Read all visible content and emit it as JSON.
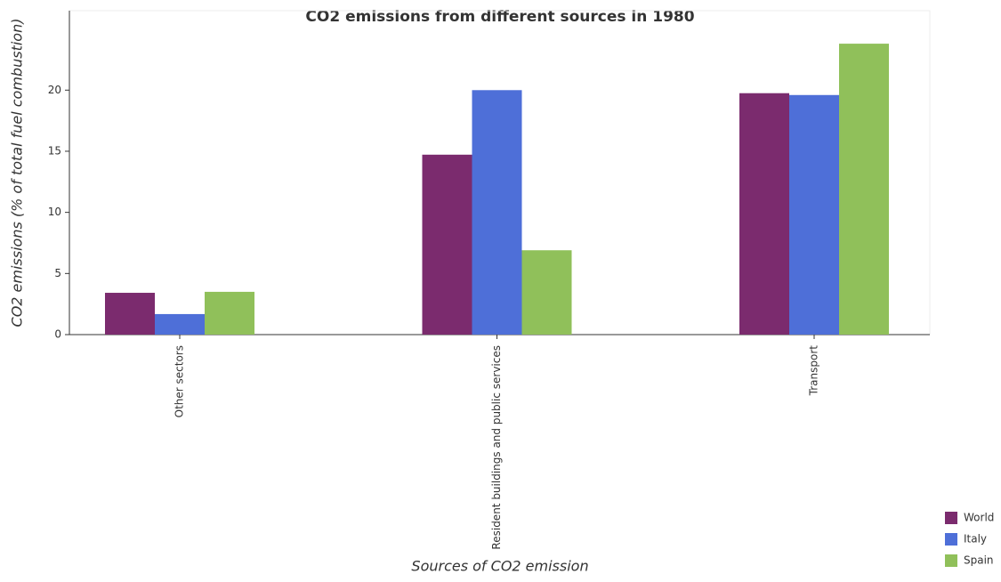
{
  "chart_data": {
    "type": "bar",
    "title": "CO2 emissions from different sources in 1980",
    "x_label": "Sources of CO2 emission",
    "y_label": "CO2 emissions (% of total fuel combustion)",
    "categories": [
      "Other sectors",
      "Resident buildings and public services",
      "Transport"
    ],
    "series": [
      {
        "name": "World",
        "color": "#7b2b6e",
        "values": [
          3.42,
          14.72,
          19.75
        ]
      },
      {
        "name": "Italy",
        "color": "#4e6fd8",
        "values": [
          1.68,
          20.0,
          19.6
        ]
      },
      {
        "name": "Spain",
        "color": "#90c05a",
        "values": [
          3.5,
          6.9,
          23.8
        ]
      }
    ],
    "ylim": [
      0,
      26.5
    ],
    "yticks": [
      0,
      5,
      10,
      15,
      20
    ],
    "legend": "bottom-right"
  }
}
